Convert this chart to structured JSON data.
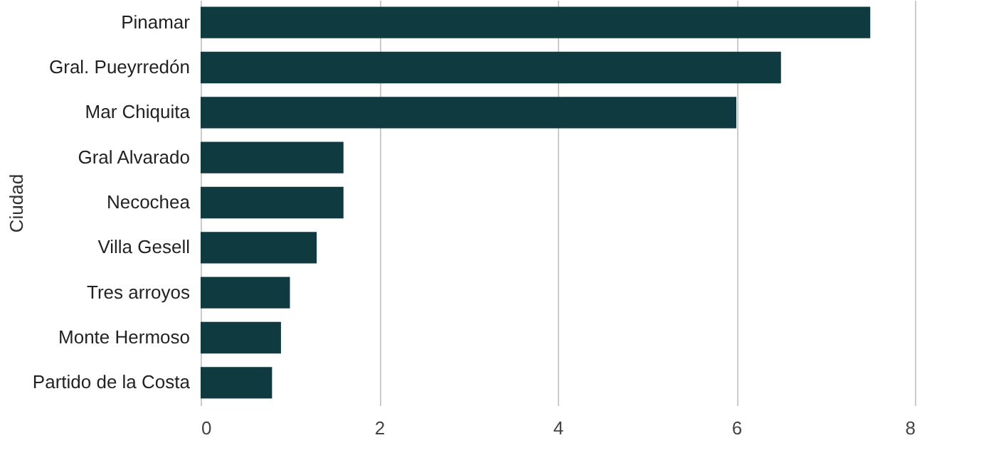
{
  "chart_data": {
    "type": "bar",
    "orientation": "horizontal",
    "ylabel": "Ciudad",
    "categories": [
      "Pinamar",
      "Gral. Pueyrredón",
      "Mar Chiquita",
      "Gral Alvarado",
      "Necochea",
      "Villa Gesell",
      "Tres arroyos",
      "Monte Hermoso",
      "Partido de la Costa"
    ],
    "values": [
      7.5,
      6.5,
      6.0,
      1.6,
      1.6,
      1.3,
      1.0,
      0.9,
      0.8
    ],
    "color": "#0f3a40",
    "xlim": [
      0,
      8
    ],
    "xticks": [
      0,
      2,
      4,
      6,
      8
    ],
    "grid": "x"
  }
}
